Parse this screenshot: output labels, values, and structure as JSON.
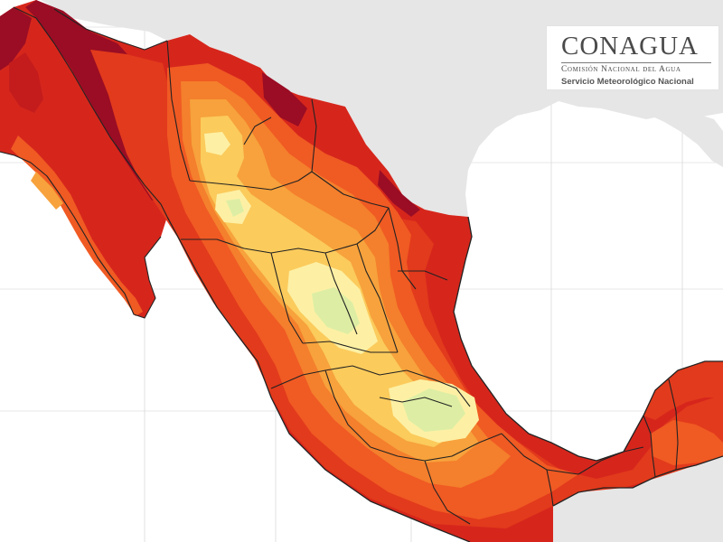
{
  "map": {
    "logo": {
      "name": "CONAGUA",
      "subtitle": "Comisión Nacional del Agua",
      "service": "Servicio Meteorológico Nacional"
    },
    "colors": {
      "sea": "#ffffff",
      "foreign_land": "#e6e6e6",
      "darkest_red": "#9a0d24",
      "dark_red": "#c41c1c",
      "red": "#e23a1c",
      "orange_red": "#f05a23",
      "orange": "#f47f2c",
      "light_orange": "#f7a23c",
      "yellow_orange": "#fbcb5c",
      "pale_yellow": "#fdf0a4",
      "pale_green": "#ddeea4",
      "border": "#222222",
      "graticule": "#cfcfcf"
    }
  }
}
